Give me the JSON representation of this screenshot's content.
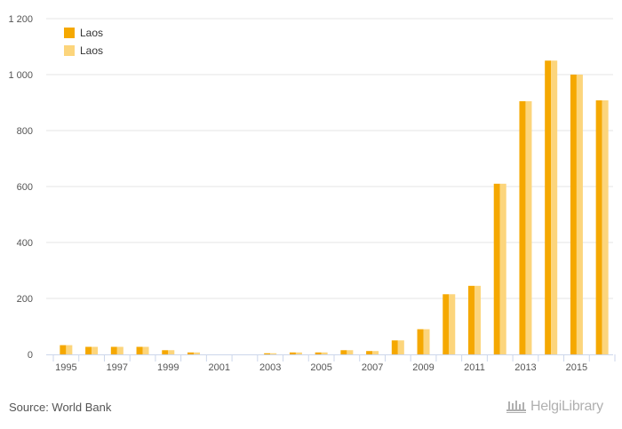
{
  "chart_data": {
    "type": "bar",
    "categories": [
      "1995",
      "1996",
      "1997",
      "1998",
      "1999",
      "2000",
      "2001",
      "2002",
      "2003",
      "2004",
      "2005",
      "2006",
      "2007",
      "2008",
      "2009",
      "2010",
      "2011",
      "2012",
      "2013",
      "2014",
      "2015",
      "2016"
    ],
    "x_tick_labels": [
      "1995",
      "1997",
      "1999",
      "2001",
      "2003",
      "2005",
      "2007",
      "2009",
      "2011",
      "2013",
      "2015"
    ],
    "series": [
      {
        "name": "Laos",
        "color": "#f5a800",
        "values": [
          33,
          27,
          27,
          27,
          15,
          7,
          0,
          0,
          4,
          7,
          7,
          15,
          12,
          50,
          90,
          215,
          245,
          610,
          905,
          1050,
          1000,
          908
        ]
      },
      {
        "name": "Laos",
        "color": "#fcd57c",
        "values": [
          33,
          27,
          27,
          27,
          15,
          7,
          0,
          0,
          4,
          7,
          7,
          15,
          12,
          50,
          90,
          215,
          245,
          610,
          905,
          1050,
          1000,
          908
        ]
      }
    ],
    "ylim": [
      0,
      1200
    ],
    "y_ticks": [
      0,
      200,
      400,
      600,
      800,
      1000,
      1200
    ],
    "y_tick_labels": [
      "0",
      "200",
      "400",
      "600",
      "800",
      "1 000",
      "1 200"
    ],
    "grid": true,
    "legend_position": "top-left",
    "title": "",
    "xlabel": "",
    "ylabel": ""
  },
  "footer": {
    "source": "Source: World Bank",
    "logo_text": "HelgiLibrary"
  },
  "colors": {
    "grid": "#e6e6e6",
    "axis_text": "#555555"
  }
}
